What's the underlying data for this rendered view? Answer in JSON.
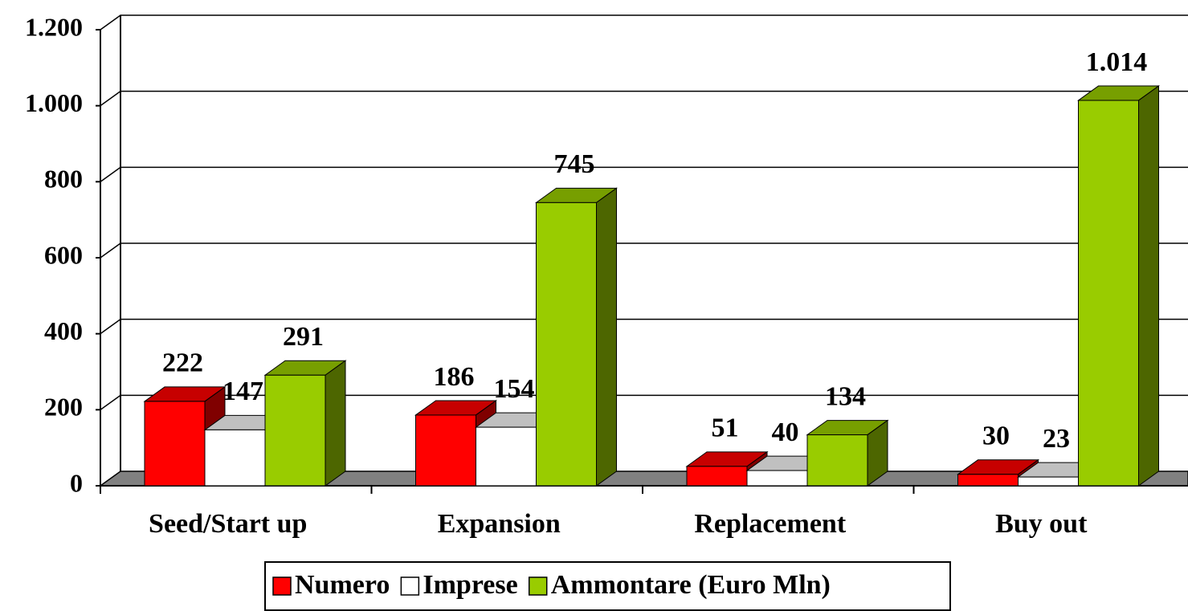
{
  "chart_data": {
    "type": "bar3d",
    "categories": [
      "Seed/Start up",
      "Expansion",
      "Replacement",
      "Buy out"
    ],
    "series": [
      {
        "name": "Numero",
        "color": "#ff0000",
        "values": [
          222,
          186,
          51,
          30
        ]
      },
      {
        "name": "Imprese",
        "color": "#ffffff",
        "values": [
          147,
          154,
          40,
          23
        ]
      },
      {
        "name": "Ammontare (Euro Mln)",
        "color": "#99cc00",
        "values": [
          291,
          745,
          134,
          1014
        ],
        "value_labels": [
          "291",
          "745",
          "134",
          "1.014"
        ]
      }
    ],
    "ylim": [
      0,
      1200
    ],
    "yticks": [
      0,
      200,
      400,
      600,
      800,
      {
        "value": 1000,
        "label": "1.000"
      },
      {
        "value": 1200,
        "label": "1.200"
      }
    ],
    "grid": true,
    "legend": "bottom"
  }
}
